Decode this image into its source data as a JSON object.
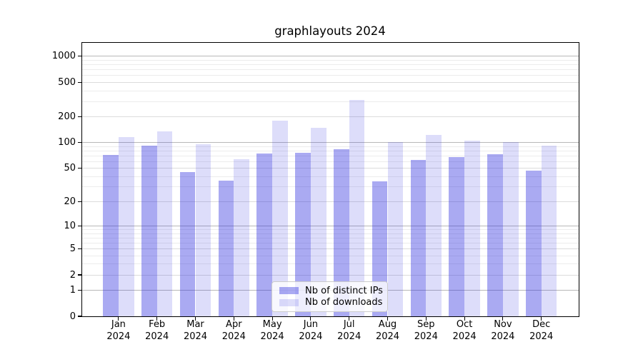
{
  "chart_data": {
    "type": "bar",
    "title": "graphlayouts 2024",
    "categories": [
      "Jan",
      "Feb",
      "Mar",
      "Apr",
      "May",
      "Jun",
      "Jul",
      "Aug",
      "Sep",
      "Oct",
      "Nov",
      "Dec"
    ],
    "x_tick_year": "2024",
    "series": [
      {
        "name": "Nb of distinct IPs",
        "color": "rgba(43,43,222,0.40)",
        "values": [
          72,
          93,
          45,
          36,
          75,
          76,
          84,
          35,
          63,
          68,
          73,
          47
        ]
      },
      {
        "name": "Nb of downloads",
        "color": "rgba(43,43,222,0.16)",
        "values": [
          115,
          136,
          95,
          64,
          180,
          149,
          310,
          101,
          123,
          105,
          102,
          92
        ]
      }
    ],
    "y_ticks": [
      0,
      1,
      2,
      5,
      10,
      20,
      50,
      100,
      200,
      500,
      1000
    ],
    "y_scale": "log1p",
    "ylim": [
      0,
      1430
    ],
    "grid": true,
    "legend_position": "lower center inside",
    "axis_color": "#000000",
    "tick_label_color": "#000000",
    "grid_major_color": "#b8b8b8",
    "grid_mid_color": "#dcdcdc",
    "grid_minor_color": "#ececec"
  }
}
